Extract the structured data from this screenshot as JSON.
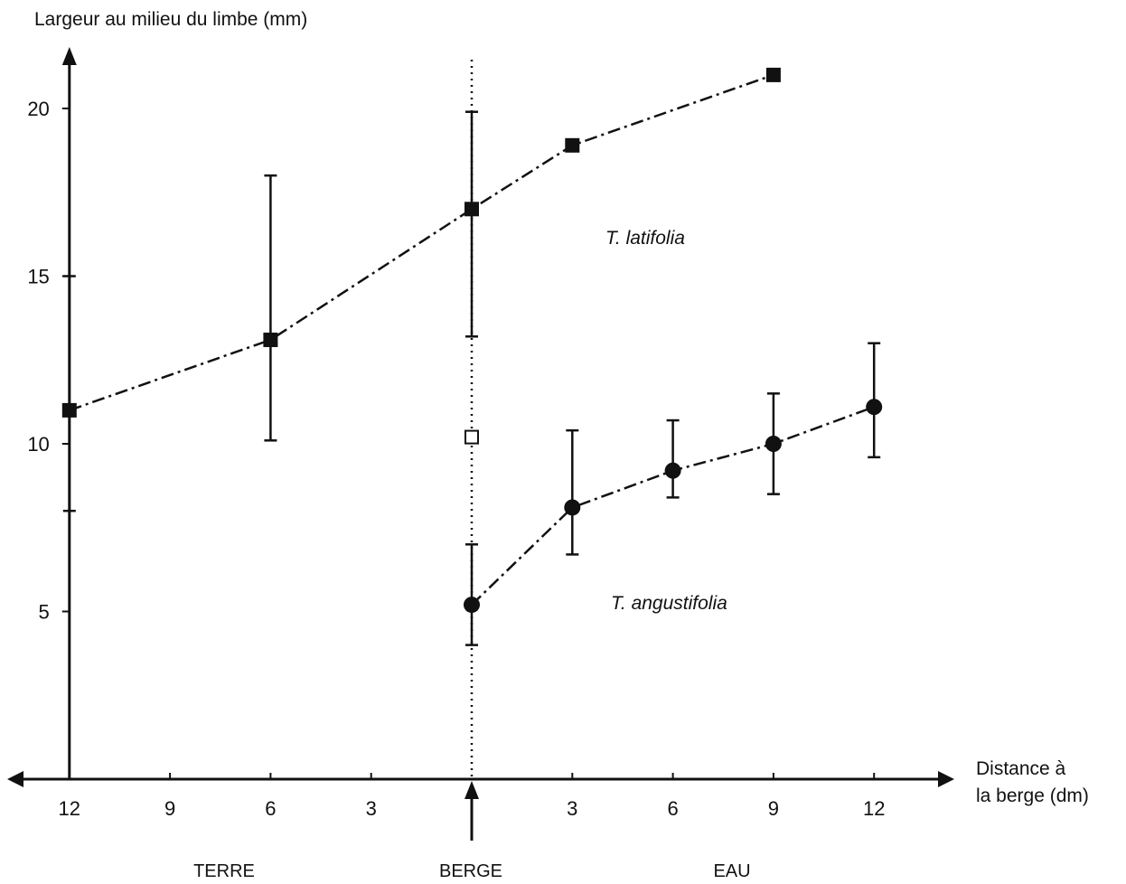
{
  "chart_data": {
    "type": "line",
    "ylabel": "Largeur au milieu du limbe (mm)",
    "xlabel": [
      "Distance à",
      "la berge (dm)"
    ],
    "y_ticks": [
      5,
      10,
      15,
      20
    ],
    "ylim": [
      0,
      21.5
    ],
    "x_ticks": [
      -12,
      -9,
      -6,
      -3,
      3,
      6,
      9,
      12
    ],
    "x_tick_labels": [
      "12",
      "9",
      "6",
      "3",
      "3",
      "6",
      "9",
      "12"
    ],
    "xlim": [
      -12,
      12
    ],
    "zones": [
      "TERRE",
      "BERGE",
      "EAU"
    ],
    "grid": false,
    "series": [
      {
        "name": "T. latifolia",
        "marker": "square",
        "points": [
          {
            "x": -12,
            "y": 11.0,
            "err_low": 8.0,
            "err_high": 15.0
          },
          {
            "x": -6,
            "y": 13.1,
            "err_low": 10.1,
            "err_high": 18.0
          },
          {
            "x": 0,
            "y": 17.0,
            "err_low": 13.2,
            "err_high": 19.9
          },
          {
            "x": 3,
            "y": 18.9
          },
          {
            "x": 9,
            "y": 21.0
          }
        ]
      },
      {
        "name": "T. angustifolia",
        "marker": "circle",
        "points": [
          {
            "x": 0,
            "y": 5.2,
            "err_low": 4.0,
            "err_high": 7.0
          },
          {
            "x": 3,
            "y": 8.1,
            "err_low": 6.7,
            "err_high": 10.4
          },
          {
            "x": 6,
            "y": 9.2,
            "err_low": 8.4,
            "err_high": 10.7
          },
          {
            "x": 9,
            "y": 10.0,
            "err_low": 8.5,
            "err_high": 11.5
          },
          {
            "x": 12,
            "y": 11.1,
            "err_low": 9.6,
            "err_high": 13.0
          }
        ]
      }
    ],
    "extra_points": [
      {
        "x": 0,
        "y": 10.2,
        "marker": "open-square"
      }
    ]
  }
}
